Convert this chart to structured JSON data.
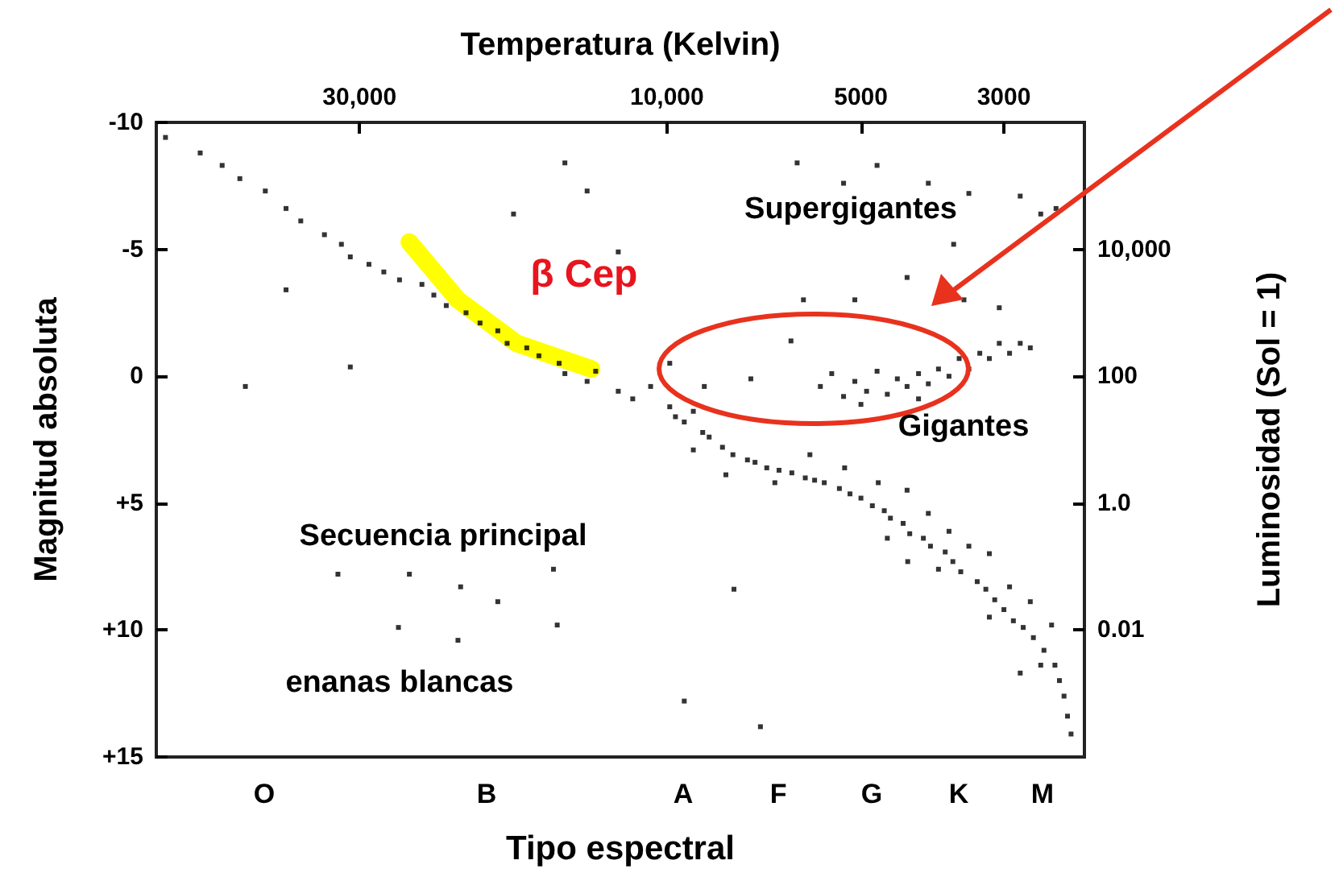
{
  "chart_data": {
    "type": "scatter",
    "xlabel": "Temperatura (Kelvin)",
    "ylabel": "Luminosidad (Sol = 1)",
    "y2label": "Magnitud absoluta",
    "xlim": [
      62000,
      2250
    ],
    "xticks": [
      {
        "value": 30000,
        "label": "30,000"
      },
      {
        "value": 10000,
        "label": "10,000"
      },
      5000,
      3000
    ],
    "ylim": [
      0.0001,
      1000000
    ],
    "yticks": [
      {
        "value": 10000,
        "label": "10,000"
      },
      100,
      {
        "value": 1,
        "label": "1.0"
      },
      0.01
    ],
    "y2lim": [
      15,
      -10
    ],
    "y2ticks": [
      -10,
      -5,
      0,
      {
        "value": 5,
        "label": "+5"
      },
      {
        "value": 10,
        "label": "+10"
      },
      {
        "value": 15,
        "label": "+15"
      }
    ],
    "log": "xy",
    "grid": false,
    "legend": false,
    "annotations": [
      "Supergigantes",
      "Gigantes",
      "Secuencia principal",
      "enanas blancas",
      "Tipo espectral",
      "O",
      "B",
      "A",
      "F",
      "G",
      "K",
      "M"
    ],
    "series": [
      {
        "color": "#000000",
        "marker": "square",
        "x": [
          60000,
          53000,
          49000,
          46000,
          42000,
          39000,
          37000,
          34000,
          32000,
          31000,
          29000,
          27500,
          26000,
          24000,
          23000,
          22000,
          20500,
          19500,
          18300,
          17700,
          16500,
          15800,
          14700,
          14400,
          13300,
          12900,
          11900,
          11300,
          10600,
          9900,
          9700,
          9400,
          9100,
          8800,
          8600,
          8200,
          7900,
          7500,
          7300,
          7000,
          6700,
          6400,
          6100,
          5900,
          5700,
          5400,
          5200,
          5000,
          4800,
          4600,
          4500,
          4300,
          4200,
          4000,
          3900,
          3700,
          3600,
          3500,
          3300,
          3200,
          3100,
          3000,
          2900,
          2800,
          2700,
          2600,
          2500,
          2460,
          2420,
          2390,
          2360,
          9100,
          8100,
          6800,
          6000,
          5300,
          4700,
          4550,
          4230,
          3930,
          3650,
          3400,
          3160,
          2940,
          2730,
          2630,
          2530,
          2830,
          3160,
          4240,
          3790,
          5780,
          5550,
          5320,
          5110,
          4900,
          4720,
          4550,
          4390,
          4240,
          4070,
          3930,
          3790,
          3650,
          3520,
          3400,
          3270,
          3160,
          3050,
          2940,
          2830,
          2730,
          5000,
          4070,
          6280,
          5320,
          4720,
          3930,
          3400,
          2830,
          2630,
          2490,
          3590,
          3460,
          3050,
          4240,
          5110,
          6140,
          6420,
          14400,
          13300,
          17300,
          11900,
          39000,
          31000,
          9900,
          8750,
          7410,
          32400,
          25100,
          20900,
          18300,
          26100,
          21100,
          14800,
          15000,
          7870,
          9400,
          7160,
          45100
        ],
        "values": [
          580000,
          330000,
          210000,
          130000,
          83000,
          44000,
          28000,
          17000,
          12000,
          7600,
          5800,
          4400,
          3300,
          2800,
          1900,
          1300,
          1000,
          690,
          520,
          330,
          280,
          210,
          160,
          110,
          83,
          120,
          58,
          44,
          69,
          33,
          23,
          19,
          28,
          13,
          11,
          7.6,
          5.8,
          4.8,
          4.4,
          3.6,
          3.3,
          3.0,
          2.5,
          2.3,
          2.1,
          1.7,
          1.4,
          1.2,
          0.91,
          0.76,
          0.58,
          0.48,
          0.33,
          0.28,
          0.21,
          0.17,
          0.12,
          0.083,
          0.058,
          0.044,
          0.03,
          0.021,
          0.014,
          0.011,
          0.0076,
          0.0048,
          0.0028,
          0.0016,
          0.00091,
          0.00044,
          0.00023,
          6.9,
          2.8,
          2.1,
          5.8,
          3.6,
          2.1,
          0.28,
          0.12,
          0.69,
          0.36,
          0.21,
          0.016,
          0.048,
          0.028,
          0.0028,
          0.012,
          0.0021,
          0.16,
          1.6,
          0.091,
          69,
          110,
          48,
          83,
          58,
          120,
          52,
          91,
          69,
          110,
          76,
          130,
          100,
          190,
          130,
          230,
          190,
          330,
          230,
          330,
          280,
          36,
          44,
          230000,
          110000,
          210000,
          110000,
          76000,
          69000,
          36000,
          44000,
          12000,
          1600,
          1200,
          3600,
          1600,
          1600,
          360,
          230000,
          83000,
          36000,
          9100,
          2300,
          140,
          160,
          69,
          91,
          0.076,
          0.076,
          0.048,
          0.028,
          0.011,
          0.0069,
          0.012,
          0.091,
          0.044,
          0.00076,
          0.0003,
          69
        ]
      },
      {
        "type": "line",
        "name": "β Cep",
        "color": "#ffff00",
        "marker": "none",
        "x": [
          25100,
          21100,
          17100,
          13100
        ],
        "values": [
          13000,
          1600,
          330,
          130
        ]
      }
    ]
  }
}
